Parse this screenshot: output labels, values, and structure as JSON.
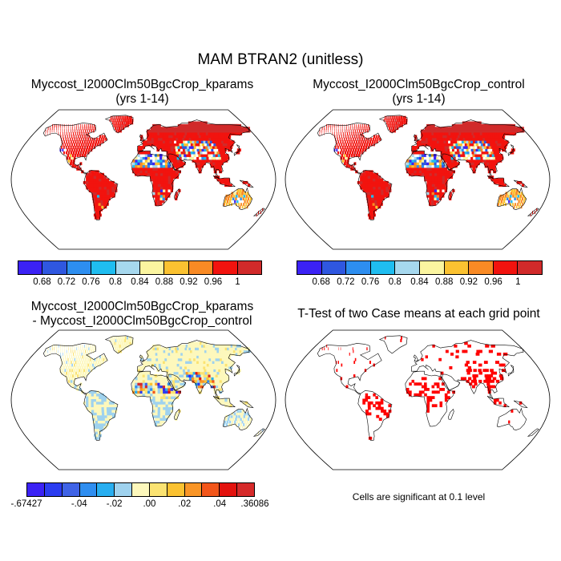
{
  "figure": {
    "title": "MAM BTRAN2 (unitless)"
  },
  "panels": [
    {
      "id": "kparams",
      "title_line1": "Myccost_I2000Clm50BgcCrop_kparams",
      "title_line2": "(yrs 1-14)"
    },
    {
      "id": "control",
      "title_line1": "Myccost_I2000Clm50BgcCrop_control",
      "title_line2": "(yrs 1-14)"
    },
    {
      "id": "difference",
      "title_line1": "Myccost_I2000Clm50BgcCrop_kparams",
      "title_line2": "- Myccost_I2000Clm50BgcCrop_control"
    },
    {
      "id": "ttest",
      "title_line1": "T-Test of two Case means at each grid point",
      "note": "Cells are significant at 0.1 level"
    }
  ],
  "colorbars": {
    "absolute": {
      "colors": [
        "#3b22f5",
        "#2f57e0",
        "#2d8ef0",
        "#1fbdf0",
        "#a6d8ee",
        "#fbf5a0",
        "#fbc231",
        "#f98a24",
        "#f2130e",
        "#d12a2a"
      ],
      "labels": [
        "0.68",
        "0.72",
        "0.76",
        "0.8",
        "0.84",
        "0.88",
        "0.92",
        "0.96",
        "1"
      ]
    },
    "difference": {
      "colors": [
        "#3b22f5",
        "#2b3cf0",
        "#3f63e6",
        "#2f8ef0",
        "#28aef0",
        "#9fd2ee",
        "#fdf8bc",
        "#fbe372",
        "#fbc231",
        "#f99526",
        "#f3561a",
        "#e3120e",
        "#d62a2a"
      ],
      "labels": [
        "-.67427",
        "-.04",
        "-.02",
        ".00",
        ".02",
        ".04",
        ".36086"
      ]
    }
  },
  "map_colors": {
    "land_dominant_absolute": "#e8231c",
    "land_dominant_difference": "#fbf2a4",
    "significant": "#ff0000",
    "outline": "#000000"
  }
}
